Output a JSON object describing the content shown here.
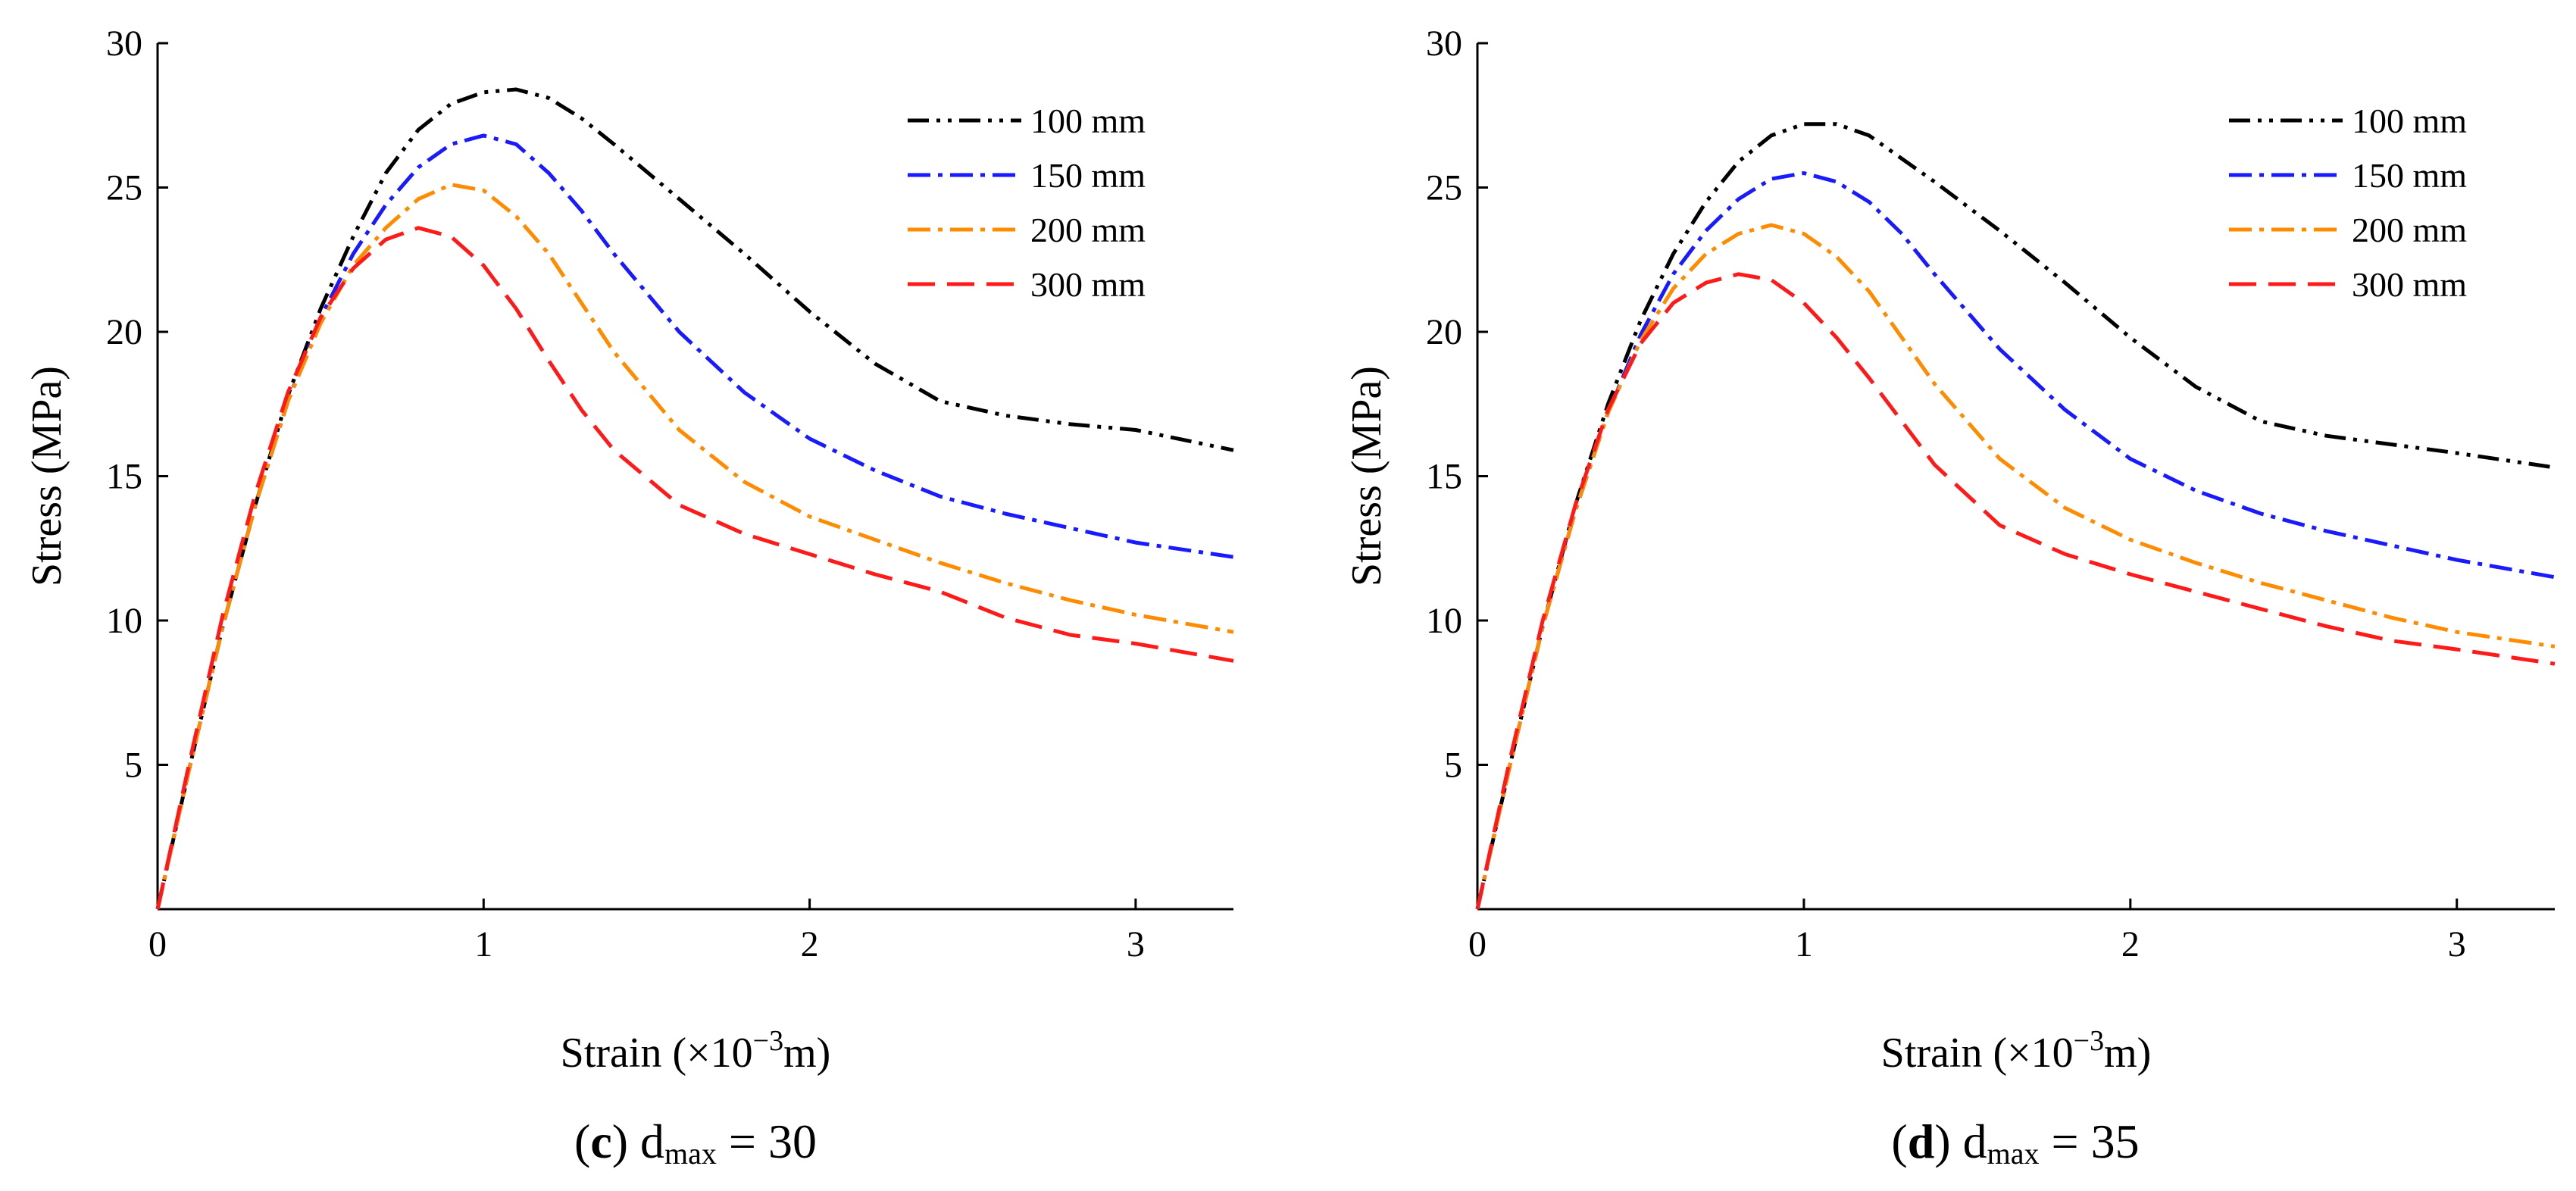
{
  "chart_data": [
    {
      "type": "line",
      "panel_letter": "c",
      "caption_main": "d",
      "caption_sub": "max",
      "caption_value": " = 30",
      "xlabel": "Strain (×10",
      "xlabel_sup": "−3",
      "xlabel_unit": "m)",
      "ylabel": "Stress (MPa)",
      "xlim": [
        0,
        3.3
      ],
      "ylim": [
        0,
        30
      ],
      "xticks": [
        0,
        1,
        2,
        3
      ],
      "yticks": [
        5,
        10,
        15,
        20,
        25,
        30
      ],
      "legend_position": "top-right",
      "series": [
        {
          "name": "100 mm",
          "color": "#000000",
          "dash": "dashdotdot",
          "x": [
            0,
            0.1,
            0.2,
            0.3,
            0.4,
            0.5,
            0.6,
            0.7,
            0.8,
            0.9,
            1.0,
            1.1,
            1.2,
            1.3,
            1.4,
            1.6,
            1.8,
            2.0,
            2.2,
            2.4,
            2.6,
            2.8,
            3.0,
            3.3
          ],
          "y": [
            0,
            5.0,
            9.8,
            14.0,
            17.8,
            20.8,
            23.3,
            25.5,
            27.0,
            27.9,
            28.3,
            28.4,
            28.1,
            27.4,
            26.5,
            24.6,
            22.7,
            20.7,
            18.9,
            17.6,
            17.1,
            16.8,
            16.6,
            15.9
          ]
        },
        {
          "name": "150 mm",
          "color": "#1a1aff",
          "dash": "dashdot",
          "x": [
            0,
            0.1,
            0.2,
            0.3,
            0.4,
            0.5,
            0.6,
            0.7,
            0.8,
            0.9,
            1.0,
            1.1,
            1.2,
            1.3,
            1.4,
            1.6,
            1.8,
            2.0,
            2.2,
            2.4,
            2.6,
            2.8,
            3.0,
            3.3
          ],
          "y": [
            0,
            5.0,
            9.8,
            14.0,
            17.6,
            20.5,
            22.7,
            24.4,
            25.7,
            26.5,
            26.8,
            26.5,
            25.5,
            24.2,
            22.7,
            20.0,
            17.9,
            16.3,
            15.2,
            14.3,
            13.7,
            13.2,
            12.7,
            12.2
          ]
        },
        {
          "name": "200 mm",
          "color": "#ff8c00",
          "dash": "dashdot",
          "x": [
            0,
            0.1,
            0.2,
            0.3,
            0.4,
            0.5,
            0.6,
            0.7,
            0.8,
            0.9,
            1.0,
            1.1,
            1.2,
            1.3,
            1.4,
            1.6,
            1.8,
            2.0,
            2.2,
            2.4,
            2.6,
            2.8,
            3.0,
            3.3
          ],
          "y": [
            0,
            5.0,
            9.8,
            14.0,
            17.6,
            20.3,
            22.3,
            23.6,
            24.6,
            25.1,
            24.9,
            24.0,
            22.7,
            21.0,
            19.3,
            16.6,
            14.8,
            13.6,
            12.8,
            12.0,
            11.3,
            10.7,
            10.2,
            9.6
          ]
        },
        {
          "name": "300 mm",
          "color": "#ff1a1a",
          "dash": "dash",
          "x": [
            0,
            0.1,
            0.2,
            0.3,
            0.4,
            0.5,
            0.6,
            0.7,
            0.8,
            0.9,
            1.0,
            1.1,
            1.2,
            1.3,
            1.4,
            1.6,
            1.8,
            2.0,
            2.2,
            2.4,
            2.6,
            2.8,
            3.0,
            3.3
          ],
          "y": [
            0,
            5.2,
            10.2,
            14.4,
            17.9,
            20.5,
            22.2,
            23.2,
            23.6,
            23.3,
            22.3,
            20.8,
            19.0,
            17.3,
            15.9,
            14.0,
            13.0,
            12.3,
            11.6,
            11.0,
            10.1,
            9.5,
            9.2,
            8.6
          ]
        }
      ]
    },
    {
      "type": "line",
      "panel_letter": "d",
      "caption_main": "d",
      "caption_sub": "max",
      "caption_value": " = 35",
      "xlabel": "Strain (×10",
      "xlabel_sup": "−3",
      "xlabel_unit": "m)",
      "ylabel": "Stress (MPa)",
      "xlim": [
        0,
        3.3
      ],
      "ylim": [
        0,
        30
      ],
      "xticks": [
        0,
        1,
        2,
        3
      ],
      "yticks": [
        5,
        10,
        15,
        20,
        25,
        30
      ],
      "legend_position": "top-right",
      "series": [
        {
          "name": "100 mm",
          "color": "#000000",
          "dash": "dashdotdot",
          "x": [
            0,
            0.1,
            0.2,
            0.3,
            0.4,
            0.5,
            0.6,
            0.7,
            0.8,
            0.9,
            1.0,
            1.1,
            1.2,
            1.3,
            1.4,
            1.6,
            1.8,
            2.0,
            2.2,
            2.4,
            2.6,
            2.8,
            3.0,
            3.3
          ],
          "y": [
            0,
            5.0,
            9.8,
            14.0,
            17.5,
            20.4,
            22.7,
            24.5,
            25.9,
            26.8,
            27.2,
            27.2,
            26.8,
            26.0,
            25.2,
            23.5,
            21.7,
            19.8,
            18.1,
            16.9,
            16.4,
            16.1,
            15.8,
            15.3
          ]
        },
        {
          "name": "150 mm",
          "color": "#1a1aff",
          "dash": "dashdot",
          "x": [
            0,
            0.1,
            0.2,
            0.3,
            0.4,
            0.5,
            0.6,
            0.7,
            0.8,
            0.9,
            1.0,
            1.1,
            1.2,
            1.3,
            1.4,
            1.6,
            1.8,
            2.0,
            2.2,
            2.4,
            2.6,
            2.8,
            3.0,
            3.3
          ],
          "y": [
            0,
            5.0,
            9.8,
            13.8,
            17.2,
            19.9,
            22.0,
            23.5,
            24.6,
            25.3,
            25.5,
            25.2,
            24.5,
            23.4,
            22.0,
            19.4,
            17.3,
            15.6,
            14.5,
            13.7,
            13.1,
            12.6,
            12.1,
            11.5
          ]
        },
        {
          "name": "200 mm",
          "color": "#ff8c00",
          "dash": "dashdot",
          "x": [
            0,
            0.1,
            0.2,
            0.3,
            0.4,
            0.5,
            0.6,
            0.7,
            0.8,
            0.9,
            1.0,
            1.1,
            1.2,
            1.3,
            1.4,
            1.6,
            1.8,
            2.0,
            2.2,
            2.4,
            2.6,
            2.8,
            3.0,
            3.3
          ],
          "y": [
            0,
            5.0,
            9.8,
            13.8,
            17.2,
            19.7,
            21.5,
            22.7,
            23.4,
            23.7,
            23.4,
            22.6,
            21.4,
            19.8,
            18.2,
            15.6,
            13.9,
            12.8,
            12.0,
            11.3,
            10.7,
            10.1,
            9.6,
            9.1
          ]
        },
        {
          "name": "300 mm",
          "color": "#ff1a1a",
          "dash": "dash",
          "x": [
            0,
            0.1,
            0.2,
            0.3,
            0.4,
            0.5,
            0.6,
            0.7,
            0.8,
            0.9,
            1.0,
            1.1,
            1.2,
            1.3,
            1.4,
            1.6,
            1.8,
            2.0,
            2.2,
            2.4,
            2.6,
            2.8,
            3.0,
            3.3
          ],
          "y": [
            0,
            5.2,
            10.0,
            14.0,
            17.3,
            19.6,
            21.0,
            21.7,
            22.0,
            21.8,
            21.0,
            19.8,
            18.4,
            16.9,
            15.4,
            13.3,
            12.3,
            11.6,
            11.0,
            10.4,
            9.8,
            9.3,
            9.0,
            8.5
          ]
        }
      ]
    }
  ]
}
